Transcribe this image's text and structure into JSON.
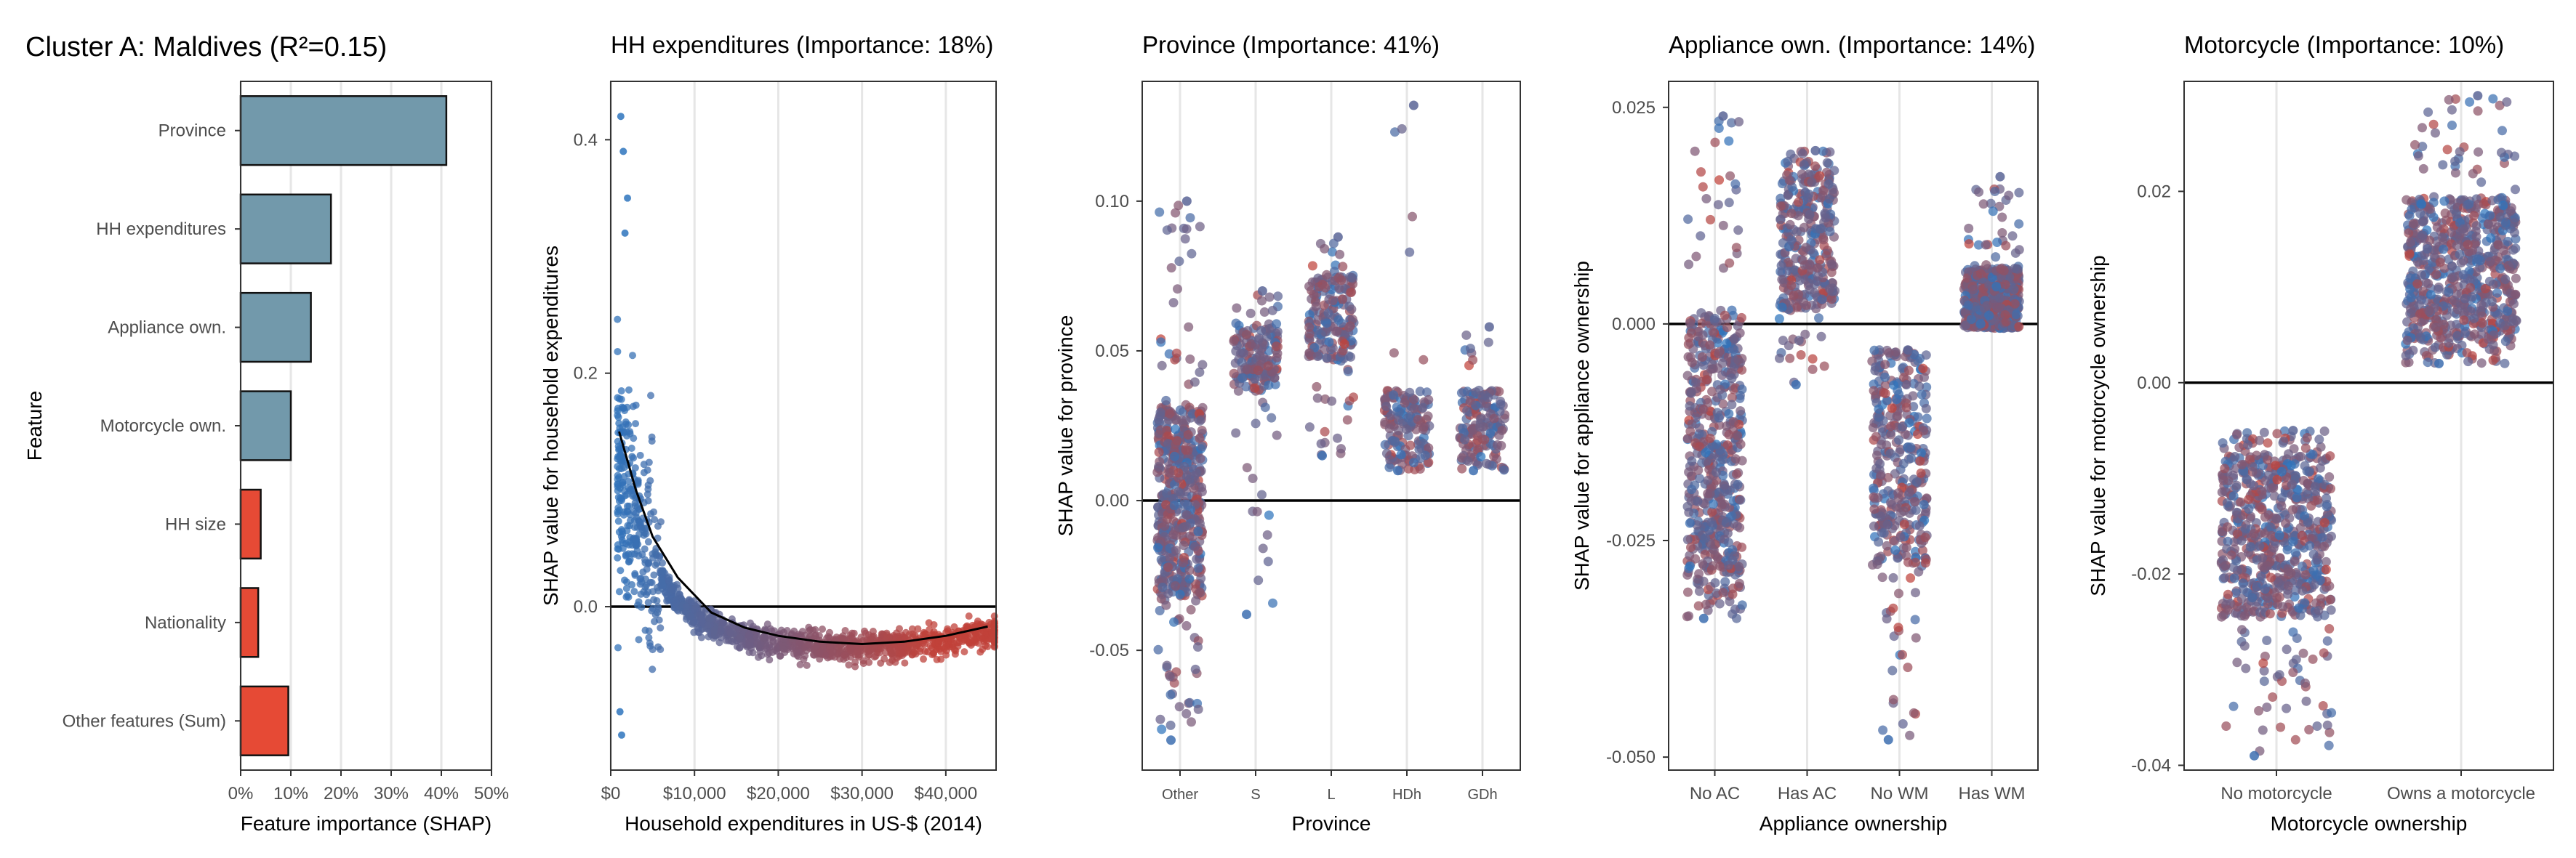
{
  "figure": {
    "title": "Cluster A: Maldives (R²=0.15)"
  },
  "colors": {
    "bar_positive": "#7299AB",
    "bar_negative": "#E64A35",
    "dot_low": "#2E74BD",
    "dot_high": "#C0423A",
    "gridline": "#E6E6E6",
    "zero_line": "#000000"
  },
  "chart_data": [
    {
      "type": "bar",
      "orientation": "horizontal",
      "title": "",
      "xlabel": "Feature importance (SHAP)",
      "ylabel": "Feature",
      "categories": [
        "Province",
        "HH expenditures",
        "Appliance own.",
        "Motorcycle own.",
        "HH size",
        "Nationality",
        "Other features (Sum)"
      ],
      "values": [
        41,
        18,
        14,
        10,
        4,
        3.5,
        9.5
      ],
      "bar_colors": [
        "#7299AB",
        "#7299AB",
        "#7299AB",
        "#7299AB",
        "#E64A35",
        "#E64A35",
        "#E64A35"
      ],
      "xlim": [
        0,
        50
      ],
      "xticks": [
        0,
        10,
        20,
        30,
        40,
        50
      ],
      "xtick_labels": [
        "0%",
        "10%",
        "20%",
        "30%",
        "40%",
        "50%"
      ],
      "grid": true
    },
    {
      "type": "scatter",
      "title": "HH expenditures (Importance: 18%)",
      "xlabel": "Household expenditures in US-$ (2014)",
      "ylabel": "SHAP value for household expenditures",
      "xlim": [
        0,
        46000
      ],
      "ylim": [
        -0.14,
        0.45
      ],
      "xticks": [
        0,
        10000,
        20000,
        30000,
        40000
      ],
      "xtick_labels": [
        "$0",
        "$10,000",
        "$20,000",
        "$30,000",
        "$40,000"
      ],
      "yticks": [
        0,
        0.2,
        0.4
      ],
      "ytick_labels": [
        "0.0",
        "0.2",
        "0.4"
      ],
      "trend": {
        "x": [
          1000,
          3000,
          5000,
          8000,
          12000,
          16000,
          20000,
          25000,
          30000,
          35000,
          40000,
          45000
        ],
        "y": [
          0.15,
          0.1,
          0.06,
          0.025,
          -0.005,
          -0.018,
          -0.025,
          -0.03,
          -0.032,
          -0.03,
          -0.025,
          -0.017
        ]
      },
      "grid": true
    },
    {
      "type": "scatter",
      "title": "Province (Importance: 41%)",
      "xlabel": "Province",
      "ylabel": "SHAP value for province",
      "categories": [
        "Other",
        "S",
        "L",
        "HDh",
        "GDh"
      ],
      "ylim": [
        -0.09,
        0.14
      ],
      "yticks": [
        -0.05,
        0,
        0.05,
        0.1
      ],
      "ytick_labels": [
        "-0.05",
        "0.00",
        "0.05",
        "0.10"
      ],
      "groups": [
        {
          "category": "Other",
          "center": 0.0,
          "spread": 0.032,
          "tail_low": -0.08,
          "tail_high": 0.1,
          "n": 520
        },
        {
          "category": "S",
          "center": 0.048,
          "spread": 0.012,
          "tail_low": -0.038,
          "tail_high": 0.07,
          "n": 170
        },
        {
          "category": "L",
          "center": 0.061,
          "spread": 0.014,
          "tail_low": 0.015,
          "tail_high": 0.088,
          "n": 200
        },
        {
          "category": "HDh",
          "center": 0.025,
          "spread": 0.012,
          "tail_low": 0.01,
          "tail_high": 0.132,
          "n": 150
        },
        {
          "category": "GDh",
          "center": 0.025,
          "spread": 0.012,
          "tail_low": 0.01,
          "tail_high": 0.058,
          "n": 150
        }
      ],
      "grid": true
    },
    {
      "type": "scatter",
      "title": "Appliance own. (Importance: 14%)",
      "xlabel": "Appliance ownership",
      "ylabel": "SHAP value for appliance ownership",
      "categories": [
        "No AC",
        "Has AC",
        "No WM",
        "Has WM"
      ],
      "ylim": [
        -0.0515,
        0.028
      ],
      "yticks": [
        -0.05,
        -0.025,
        0,
        0.025
      ],
      "ytick_labels": [
        "-0.050",
        "-0.025",
        "0.000",
        "0.025"
      ],
      "groups": [
        {
          "category": "No AC",
          "center": -0.014,
          "spread": 0.015,
          "tail_low": -0.034,
          "tail_high": 0.024,
          "n": 550
        },
        {
          "category": "Has AC",
          "center": 0.0095,
          "spread": 0.008,
          "tail_low": -0.007,
          "tail_high": 0.02,
          "n": 330
        },
        {
          "category": "No WM",
          "center": -0.016,
          "spread": 0.012,
          "tail_low": -0.048,
          "tail_high": -0.003,
          "n": 360
        },
        {
          "category": "Has WM",
          "center": 0.003,
          "spread": 0.0035,
          "tail_low": 0.0,
          "tail_high": 0.017,
          "n": 480
        }
      ],
      "grid": true
    },
    {
      "type": "scatter",
      "title": "Motorcycle (Importance: 10%)",
      "xlabel": "Motorcycle ownership",
      "ylabel": "SHAP value for motorcycle ownership",
      "categories": [
        "No motorcycle",
        "Owns a motorcycle"
      ],
      "ylim": [
        -0.0405,
        0.0315
      ],
      "yticks": [
        -0.04,
        -0.02,
        0,
        0.02
      ],
      "ytick_labels": [
        "-0.04",
        "-0.02",
        "0.00",
        "0.02"
      ],
      "groups": [
        {
          "category": "No motorcycle",
          "center": -0.016,
          "spread": 0.0085,
          "tail_low": -0.039,
          "tail_high": -0.005,
          "n": 700
        },
        {
          "category": "Owns a motorcycle",
          "center": 0.0118,
          "spread": 0.0075,
          "tail_low": 0.002,
          "tail_high": 0.03,
          "n": 700
        }
      ],
      "grid": true
    }
  ]
}
